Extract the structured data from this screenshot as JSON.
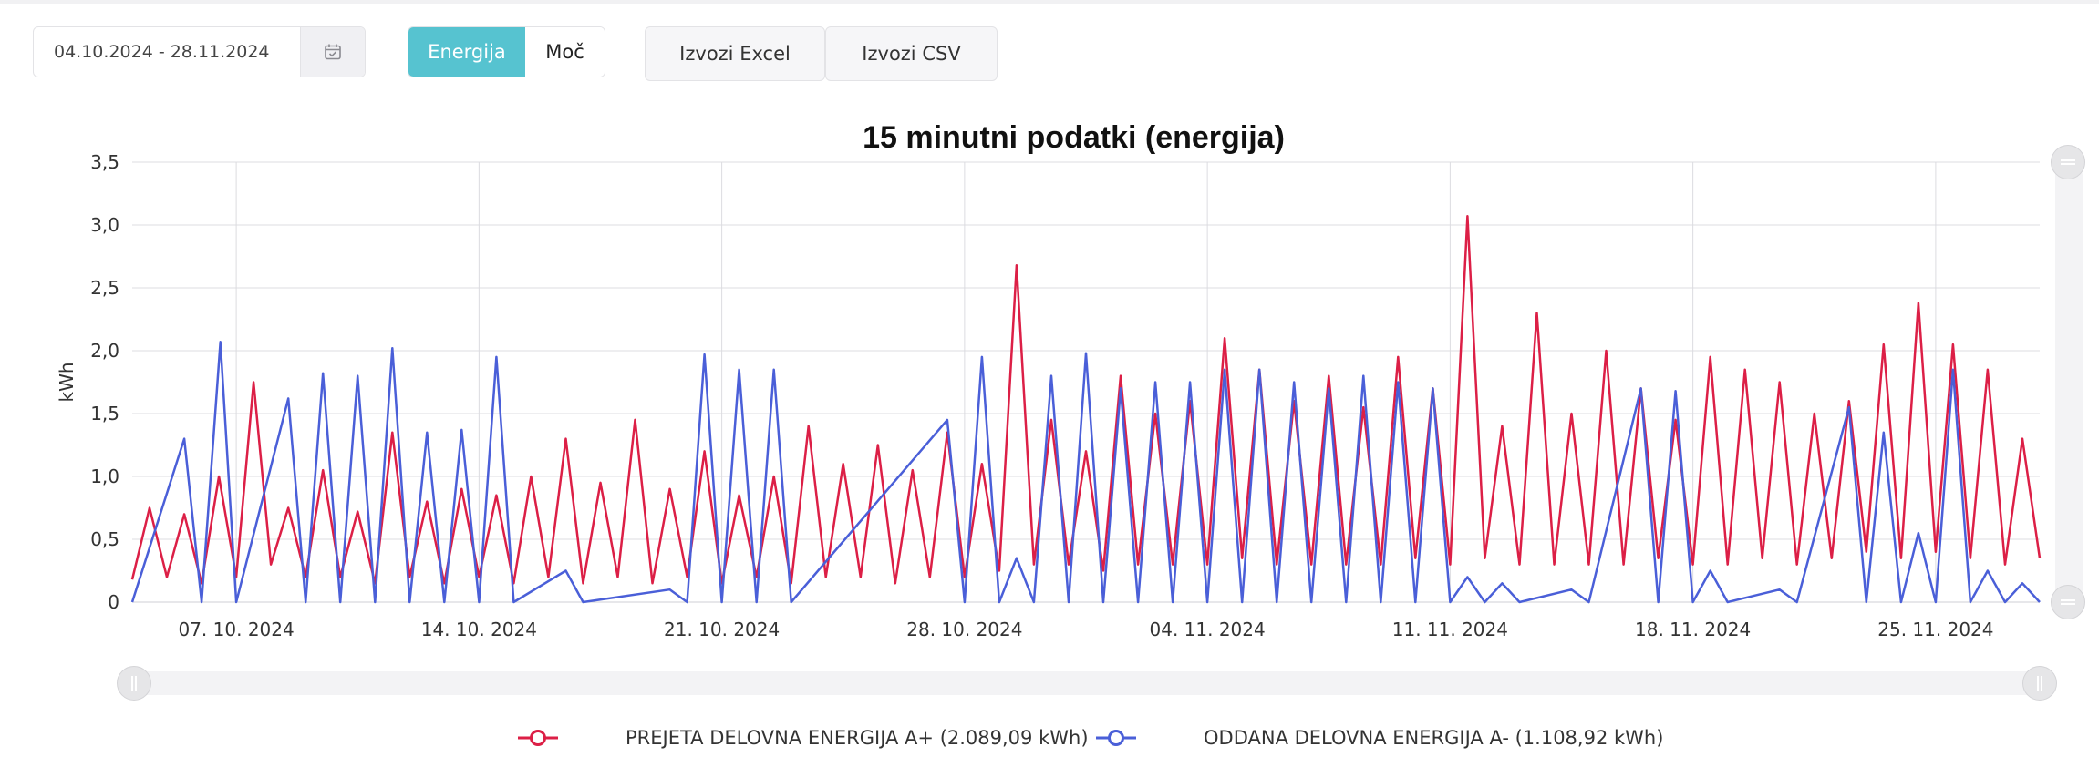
{
  "controls": {
    "date_range": "04.10.2024 - 28.11.2024",
    "mode_tabs": [
      {
        "label": "Energija",
        "active": true
      },
      {
        "label": "Moč",
        "active": false
      }
    ],
    "export_excel": "Izvozi Excel",
    "export_csv": "Izvozi CSV",
    "accent_color": "#56c3d0"
  },
  "chart_data": {
    "type": "line",
    "title": "15 minutni podatki (energija)",
    "ylabel": "kWh",
    "xlabel": "",
    "ylim": [
      0,
      3.5
    ],
    "y_ticks": [
      "0",
      "0,5",
      "1,0",
      "1,5",
      "2,0",
      "2,5",
      "3,0",
      "3,5"
    ],
    "y_tick_values": [
      0,
      0.5,
      1.0,
      1.5,
      2.0,
      2.5,
      3.0,
      3.5
    ],
    "x_range": [
      "2024-10-04T00:00",
      "2024-11-28T00:00"
    ],
    "x_ticks": [
      "07. 10. 2024",
      "14. 10. 2024",
      "21. 10. 2024",
      "28. 10. 2024",
      "04. 11. 2024",
      "11. 11. 2024",
      "18. 11. 2024",
      "25. 11. 2024"
    ],
    "x_tick_dates": [
      "2024-10-07",
      "2024-10-14",
      "2024-10-21",
      "2024-10-28",
      "2024-11-04",
      "2024-11-11",
      "2024-11-18",
      "2024-11-25"
    ],
    "grid": true,
    "legend_position": "bottom-center",
    "series": [
      {
        "name": "PREJETA DELOVNA ENERGIJA A+ (2.089,09 kWh)",
        "color": "#dc1f46",
        "points": [
          [
            "2024-10-04",
            0.18
          ],
          [
            "2024-10-04T12:00",
            0.75
          ],
          [
            "2024-10-05",
            0.2
          ],
          [
            "2024-10-05T12:00",
            0.7
          ],
          [
            "2024-10-06",
            0.15
          ],
          [
            "2024-10-06T12:00",
            1.0
          ],
          [
            "2024-10-07",
            0.2
          ],
          [
            "2024-10-07T12:00",
            1.75
          ],
          [
            "2024-10-08",
            0.3
          ],
          [
            "2024-10-08T12:00",
            0.75
          ],
          [
            "2024-10-09",
            0.2
          ],
          [
            "2024-10-09T12:00",
            1.05
          ],
          [
            "2024-10-10",
            0.2
          ],
          [
            "2024-10-10T12:00",
            0.72
          ],
          [
            "2024-10-11",
            0.15
          ],
          [
            "2024-10-11T12:00",
            1.35
          ],
          [
            "2024-10-12",
            0.2
          ],
          [
            "2024-10-12T12:00",
            0.8
          ],
          [
            "2024-10-13",
            0.15
          ],
          [
            "2024-10-13T12:00",
            0.9
          ],
          [
            "2024-10-14",
            0.2
          ],
          [
            "2024-10-14T12:00",
            0.85
          ],
          [
            "2024-10-15",
            0.15
          ],
          [
            "2024-10-15T12:00",
            1.0
          ],
          [
            "2024-10-16",
            0.2
          ],
          [
            "2024-10-16T12:00",
            1.3
          ],
          [
            "2024-10-17",
            0.15
          ],
          [
            "2024-10-17T12:00",
            0.95
          ],
          [
            "2024-10-18",
            0.2
          ],
          [
            "2024-10-18T12:00",
            1.45
          ],
          [
            "2024-10-19",
            0.15
          ],
          [
            "2024-10-19T12:00",
            0.9
          ],
          [
            "2024-10-20",
            0.2
          ],
          [
            "2024-10-20T12:00",
            1.2
          ],
          [
            "2024-10-21",
            0.15
          ],
          [
            "2024-10-21T12:00",
            0.85
          ],
          [
            "2024-10-22",
            0.2
          ],
          [
            "2024-10-22T12:00",
            1.0
          ],
          [
            "2024-10-23",
            0.15
          ],
          [
            "2024-10-23T12:00",
            1.4
          ],
          [
            "2024-10-24",
            0.2
          ],
          [
            "2024-10-24T12:00",
            1.1
          ],
          [
            "2024-10-25",
            0.2
          ],
          [
            "2024-10-25T12:00",
            1.25
          ],
          [
            "2024-10-26",
            0.15
          ],
          [
            "2024-10-26T12:00",
            1.05
          ],
          [
            "2024-10-27",
            0.2
          ],
          [
            "2024-10-27T12:00",
            1.35
          ],
          [
            "2024-10-28",
            0.2
          ],
          [
            "2024-10-28T12:00",
            1.1
          ],
          [
            "2024-10-29",
            0.25
          ],
          [
            "2024-10-29T12:00",
            2.68
          ],
          [
            "2024-10-30",
            0.3
          ],
          [
            "2024-10-30T12:00",
            1.45
          ],
          [
            "2024-10-31",
            0.3
          ],
          [
            "2024-10-31T12:00",
            1.2
          ],
          [
            "2024-11-01",
            0.25
          ],
          [
            "2024-11-01T12:00",
            1.8
          ],
          [
            "2024-11-02",
            0.3
          ],
          [
            "2024-11-02T12:00",
            1.5
          ],
          [
            "2024-11-03",
            0.3
          ],
          [
            "2024-11-03T12:00",
            1.6
          ],
          [
            "2024-11-04",
            0.3
          ],
          [
            "2024-11-04T12:00",
            2.1
          ],
          [
            "2024-11-05",
            0.35
          ],
          [
            "2024-11-05T12:00",
            1.85
          ],
          [
            "2024-11-06",
            0.3
          ],
          [
            "2024-11-06T12:00",
            1.6
          ],
          [
            "2024-11-07",
            0.3
          ],
          [
            "2024-11-07T12:00",
            1.8
          ],
          [
            "2024-11-08",
            0.3
          ],
          [
            "2024-11-08T12:00",
            1.55
          ],
          [
            "2024-11-09",
            0.3
          ],
          [
            "2024-11-09T12:00",
            1.95
          ],
          [
            "2024-11-10",
            0.35
          ],
          [
            "2024-11-10T12:00",
            1.7
          ],
          [
            "2024-11-11",
            0.3
          ],
          [
            "2024-11-11T12:00",
            3.07
          ],
          [
            "2024-11-12",
            0.35
          ],
          [
            "2024-11-12T12:00",
            1.4
          ],
          [
            "2024-11-13",
            0.3
          ],
          [
            "2024-11-13T12:00",
            2.3
          ],
          [
            "2024-11-14",
            0.3
          ],
          [
            "2024-11-14T12:00",
            1.5
          ],
          [
            "2024-11-15",
            0.3
          ],
          [
            "2024-11-15T12:00",
            2.0
          ],
          [
            "2024-11-16",
            0.3
          ],
          [
            "2024-11-16T12:00",
            1.7
          ],
          [
            "2024-11-17",
            0.35
          ],
          [
            "2024-11-17T12:00",
            1.45
          ],
          [
            "2024-11-18",
            0.3
          ],
          [
            "2024-11-18T12:00",
            1.95
          ],
          [
            "2024-11-19",
            0.3
          ],
          [
            "2024-11-19T12:00",
            1.85
          ],
          [
            "2024-11-20",
            0.35
          ],
          [
            "2024-11-20T12:00",
            1.75
          ],
          [
            "2024-11-21",
            0.3
          ],
          [
            "2024-11-21T12:00",
            1.5
          ],
          [
            "2024-11-22",
            0.35
          ],
          [
            "2024-11-22T12:00",
            1.6
          ],
          [
            "2024-11-23",
            0.4
          ],
          [
            "2024-11-23T12:00",
            2.05
          ],
          [
            "2024-11-24",
            0.35
          ],
          [
            "2024-11-24T12:00",
            2.38
          ],
          [
            "2024-11-25",
            0.4
          ],
          [
            "2024-11-25T12:00",
            2.05
          ],
          [
            "2024-11-26",
            0.35
          ],
          [
            "2024-11-26T12:00",
            1.85
          ],
          [
            "2024-11-27",
            0.3
          ],
          [
            "2024-11-27T12:00",
            1.3
          ],
          [
            "2024-11-28",
            0.35
          ]
        ]
      },
      {
        "name": "ODDANA DELOVNA ENERGIJA A- (1.108,92 kWh)",
        "color": "#4a5fd8",
        "points": [
          [
            "2024-10-04",
            0
          ],
          [
            "2024-10-05T12:00",
            1.3
          ],
          [
            "2024-10-06",
            0
          ],
          [
            "2024-10-06T13:00",
            2.07
          ],
          [
            "2024-10-07",
            0
          ],
          [
            "2024-10-08T12:00",
            1.62
          ],
          [
            "2024-10-09",
            0
          ],
          [
            "2024-10-09T12:00",
            1.82
          ],
          [
            "2024-10-10",
            0
          ],
          [
            "2024-10-10T12:00",
            1.8
          ],
          [
            "2024-10-11",
            0
          ],
          [
            "2024-10-11T12:00",
            2.02
          ],
          [
            "2024-10-12",
            0
          ],
          [
            "2024-10-12T12:00",
            1.35
          ],
          [
            "2024-10-13",
            0
          ],
          [
            "2024-10-13T12:00",
            1.37
          ],
          [
            "2024-10-14",
            0
          ],
          [
            "2024-10-14T12:00",
            1.95
          ],
          [
            "2024-10-15",
            0
          ],
          [
            "2024-10-16T12:00",
            0.25
          ],
          [
            "2024-10-17",
            0
          ],
          [
            "2024-10-19T12:00",
            0.1
          ],
          [
            "2024-10-20",
            0
          ],
          [
            "2024-10-20T12:00",
            1.97
          ],
          [
            "2024-10-21",
            0
          ],
          [
            "2024-10-21T12:00",
            1.85
          ],
          [
            "2024-10-22",
            0
          ],
          [
            "2024-10-22T12:00",
            1.85
          ],
          [
            "2024-10-23",
            0
          ],
          [
            "2024-10-27T12:00",
            1.45
          ],
          [
            "2024-10-28",
            0
          ],
          [
            "2024-10-28T12:00",
            1.95
          ],
          [
            "2024-10-29",
            0
          ],
          [
            "2024-10-29T12:00",
            0.35
          ],
          [
            "2024-10-30",
            0
          ],
          [
            "2024-10-30T12:00",
            1.8
          ],
          [
            "2024-10-31",
            0
          ],
          [
            "2024-10-31T12:00",
            1.98
          ],
          [
            "2024-11-01",
            0
          ],
          [
            "2024-11-01T12:00",
            1.7
          ],
          [
            "2024-11-02",
            0
          ],
          [
            "2024-11-02T12:00",
            1.75
          ],
          [
            "2024-11-03",
            0
          ],
          [
            "2024-11-03T12:00",
            1.75
          ],
          [
            "2024-11-04",
            0
          ],
          [
            "2024-11-04T12:00",
            1.85
          ],
          [
            "2024-11-05",
            0
          ],
          [
            "2024-11-05T12:00",
            1.85
          ],
          [
            "2024-11-06",
            0
          ],
          [
            "2024-11-06T12:00",
            1.75
          ],
          [
            "2024-11-07",
            0
          ],
          [
            "2024-11-07T12:00",
            1.7
          ],
          [
            "2024-11-08",
            0
          ],
          [
            "2024-11-08T12:00",
            1.8
          ],
          [
            "2024-11-09",
            0
          ],
          [
            "2024-11-09T12:00",
            1.75
          ],
          [
            "2024-11-10",
            0
          ],
          [
            "2024-11-10T12:00",
            1.7
          ],
          [
            "2024-11-11",
            0
          ],
          [
            "2024-11-11T12:00",
            0.2
          ],
          [
            "2024-11-12",
            0
          ],
          [
            "2024-11-12T12:00",
            0.15
          ],
          [
            "2024-11-13",
            0
          ],
          [
            "2024-11-14T12:00",
            0.1
          ],
          [
            "2024-11-15",
            0
          ],
          [
            "2024-11-16T12:00",
            1.7
          ],
          [
            "2024-11-17",
            0
          ],
          [
            "2024-11-17T12:00",
            1.68
          ],
          [
            "2024-11-18",
            0
          ],
          [
            "2024-11-18T12:00",
            0.25
          ],
          [
            "2024-11-19",
            0
          ],
          [
            "2024-11-20T12:00",
            0.1
          ],
          [
            "2024-11-21",
            0
          ],
          [
            "2024-11-22T12:00",
            1.55
          ],
          [
            "2024-11-23",
            0
          ],
          [
            "2024-11-23T12:00",
            1.35
          ],
          [
            "2024-11-24",
            0
          ],
          [
            "2024-11-24T12:00",
            0.55
          ],
          [
            "2024-11-25",
            0
          ],
          [
            "2024-11-25T12:00",
            1.85
          ],
          [
            "2024-11-26",
            0
          ],
          [
            "2024-11-26T12:00",
            0.25
          ],
          [
            "2024-11-27",
            0
          ],
          [
            "2024-11-27T12:00",
            0.15
          ],
          [
            "2024-11-28",
            0
          ]
        ]
      }
    ]
  },
  "legend": [
    {
      "label": "PREJETA DELOVNA ENERGIJA A+ (2.089,09 kWh)",
      "color": "#dc1f46"
    },
    {
      "label": "ODDANA DELOVNA ENERGIJA A- (1.108,92 kWh)",
      "color": "#4a5fd8"
    }
  ]
}
